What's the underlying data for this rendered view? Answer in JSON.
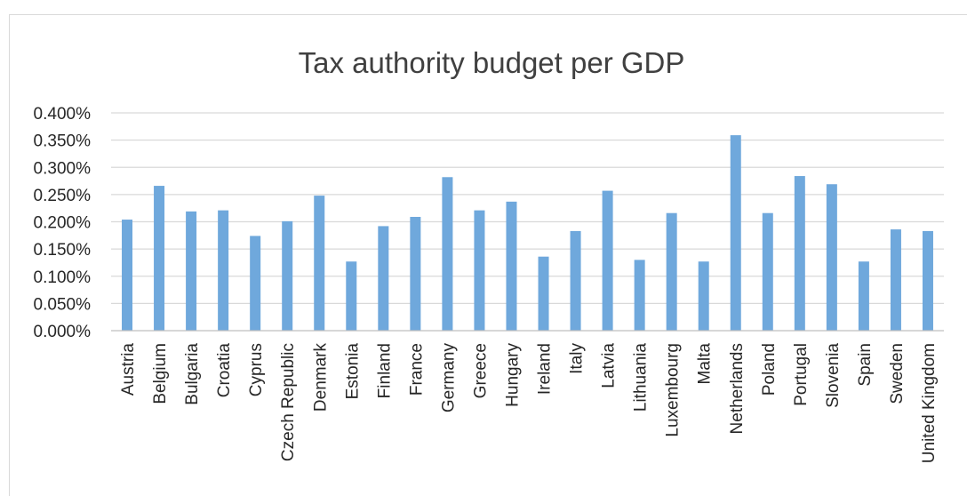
{
  "chart_data": {
    "type": "bar",
    "title": "Tax authority budget per GDP",
    "xlabel": "",
    "ylabel": "",
    "categories": [
      "Austria",
      "Belgium",
      "Bulgaria",
      "Croatia",
      "Cyprus",
      "Czech Republic",
      "Denmark",
      "Estonia",
      "Finland",
      "France",
      "Germany",
      "Greece",
      "Hungary",
      "Ireland",
      "Italy",
      "Latvia",
      "Lithuania",
      "Luxembourg",
      "Malta",
      "Netherlands",
      "Poland",
      "Portugal",
      "Slovenia",
      "Spain",
      "Sweden",
      "United Kingdom"
    ],
    "values": [
      0.204,
      0.266,
      0.219,
      0.221,
      0.174,
      0.201,
      0.248,
      0.127,
      0.192,
      0.209,
      0.282,
      0.221,
      0.237,
      0.136,
      0.183,
      0.257,
      0.13,
      0.216,
      0.127,
      0.359,
      0.216,
      0.284,
      0.269,
      0.127,
      0.186,
      0.183
    ],
    "value_unit": "%",
    "ylim": [
      0,
      0.4
    ],
    "yticks": [
      "0.000%",
      "0.050%",
      "0.100%",
      "0.150%",
      "0.200%",
      "0.250%",
      "0.300%",
      "0.350%",
      "0.400%"
    ],
    "grid": true,
    "legend": "none",
    "bar_color": "#6FA8DC"
  }
}
